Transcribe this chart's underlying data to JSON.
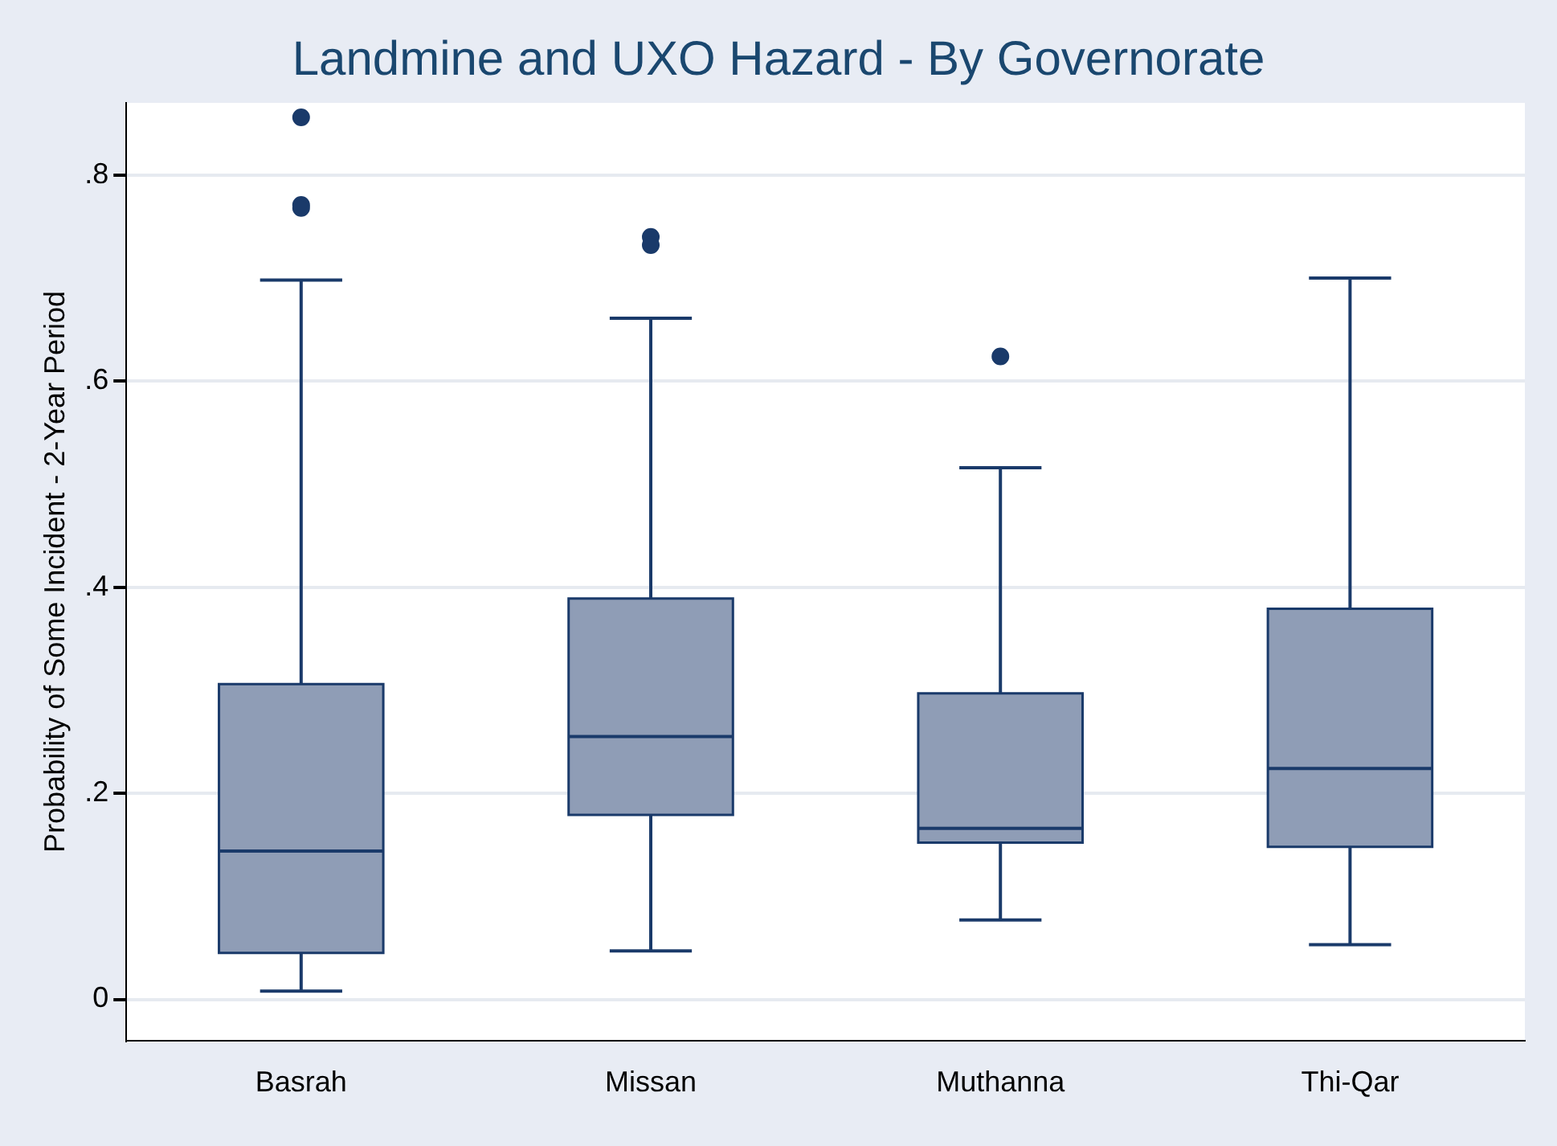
{
  "chart_data": {
    "type": "box",
    "title": "Landmine and UXO Hazard - By Governorate",
    "ylabel": "Probability of Some Incident - 2-Year Period",
    "categories": [
      "Basrah",
      "Missan",
      "Muthanna",
      "Thi-Qar"
    ],
    "color": "#8f9db6",
    "boxes": [
      {
        "low": 0.008,
        "q1": 0.045,
        "median": 0.144,
        "q3": 0.306,
        "high": 0.698,
        "outliers": [
          0.856,
          0.771,
          0.768
        ]
      },
      {
        "low": 0.047,
        "q1": 0.179,
        "median": 0.255,
        "q3": 0.389,
        "high": 0.661,
        "outliers": [
          0.74,
          0.732
        ]
      },
      {
        "low": 0.077,
        "q1": 0.152,
        "median": 0.166,
        "q3": 0.297,
        "high": 0.516,
        "outliers": [
          0.624
        ]
      },
      {
        "low": 0.053,
        "q1": 0.148,
        "median": 0.224,
        "q3": 0.379,
        "high": 0.7
      }
    ],
    "ylim": [
      -0.04,
      0.87
    ],
    "yticks": [
      0,
      {
        "value": 0.2,
        "label": ".2"
      },
      {
        "value": 0.4,
        "label": ".4"
      },
      {
        "value": 0.6,
        "label": ".6"
      },
      {
        "value": 0.8,
        "label": ".8"
      }
    ],
    "grid": "y"
  }
}
